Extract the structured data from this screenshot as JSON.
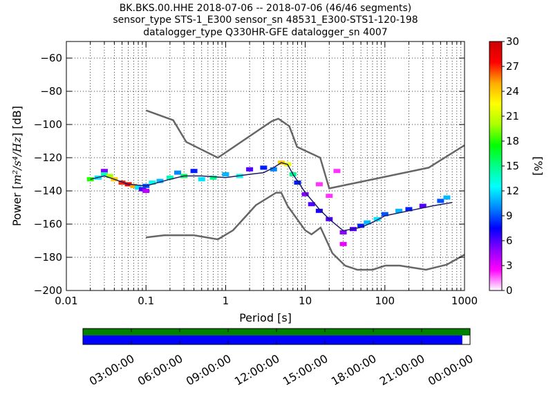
{
  "chart_data": {
    "type": "heatmap",
    "title_lines": [
      "BK.BKS.00.HHE   2018-07-06 -- 2018-07-06  (46/46 segments)",
      "sensor_type STS-1_E300 sensor_sn 48531_E300-STS1-120-198",
      "datalogger_type Q330HR-GFE datalogger_sn 4007"
    ],
    "xlabel": "Period [s]",
    "ylabel_main": "Power [",
    "ylabel_units": "m²/s⁴/Hz",
    "ylabel_end": "] [dB]",
    "xscale": "log",
    "xlim": [
      0.01,
      1000
    ],
    "ylim": [
      -200,
      -50
    ],
    "xticks": [
      {
        "value": 0.01,
        "label": "0.01"
      },
      {
        "value": 0.1,
        "label": "0.1"
      },
      {
        "value": 1,
        "label": "1"
      },
      {
        "value": 10,
        "label": "10"
      },
      {
        "value": 100,
        "label": "100"
      },
      {
        "value": 1000,
        "label": "1000"
      }
    ],
    "yticks": [
      {
        "value": -60,
        "label": "−60"
      },
      {
        "value": -80,
        "label": "−80"
      },
      {
        "value": -100,
        "label": "−100"
      },
      {
        "value": -120,
        "label": "−120"
      },
      {
        "value": -140,
        "label": "−140"
      },
      {
        "value": -160,
        "label": "−160"
      },
      {
        "value": -180,
        "label": "−180"
      },
      {
        "value": -200,
        "label": "−200"
      }
    ],
    "grid": "dotted",
    "colorbar": {
      "label": "[%]",
      "range": [
        0,
        30
      ],
      "ticks": [
        {
          "value": 0,
          "label": "0"
        },
        {
          "value": 3,
          "label": "3"
        },
        {
          "value": 6,
          "label": "6"
        },
        {
          "value": 9,
          "label": "9"
        },
        {
          "value": 12,
          "label": "12"
        },
        {
          "value": 15,
          "label": "15"
        },
        {
          "value": 18,
          "label": "18"
        },
        {
          "value": 21,
          "label": "21"
        },
        {
          "value": 24,
          "label": "24"
        },
        {
          "value": 27,
          "label": "27"
        },
        {
          "value": 30,
          "label": "30"
        }
      ],
      "colors": [
        "#ffffff",
        "#ff00ff",
        "#8800ff",
        "#0000ff",
        "#0088ff",
        "#00ffff",
        "#00ff88",
        "#00ff00",
        "#aaff00",
        "#ffff00",
        "#ffaa00",
        "#ff0000",
        "#cc0000"
      ]
    },
    "new_high_noise_model": {
      "x": [
        0.1,
        0.22,
        0.32,
        0.8,
        3.8,
        4.6,
        6.3,
        7.9,
        15.4,
        20,
        354.8,
        1000
      ],
      "y": [
        -91.5,
        -97.4,
        -110.5,
        -120,
        -98,
        -96.5,
        -101,
        -113.5,
        -120,
        -138.5,
        -126,
        -112.5
      ]
    },
    "new_low_noise_model": {
      "x": [
        0.1,
        0.17,
        0.4,
        0.8,
        1.24,
        2.4,
        4.3,
        5,
        6,
        10,
        12,
        15.6,
        21.9,
        31.6,
        45,
        70,
        101,
        154,
        328,
        600,
        1000
      ],
      "y": [
        -168,
        -166.7,
        -166.7,
        -169.2,
        -163.7,
        -148.6,
        -141.1,
        -141.1,
        -149,
        -163.8,
        -166.2,
        -162.1,
        -177.5,
        -185,
        -187.5,
        -187.5,
        -185,
        -185,
        -187.5,
        -184.4,
        -178.4
      ]
    },
    "mean_curve": {
      "x": [
        0.02,
        0.03,
        0.04,
        0.06,
        0.1,
        0.2,
        0.3,
        0.5,
        1,
        2,
        3,
        4,
        5,
        6,
        7,
        10,
        15,
        20,
        30,
        50,
        70,
        100,
        200,
        400,
        700
      ],
      "y": [
        -133,
        -131,
        -133,
        -136,
        -137,
        -133,
        -131,
        -131,
        -132,
        -130,
        -129,
        -126,
        -123,
        -124,
        -130,
        -141,
        -151,
        -157,
        -164,
        -162,
        -159,
        -155,
        -152,
        -149,
        -147
      ]
    },
    "psd_cells": [
      {
        "x": 0.02,
        "y": -133,
        "v": 18
      },
      {
        "x": 0.025,
        "y": -132,
        "v": 12
      },
      {
        "x": 0.03,
        "y": -128,
        "v": 5
      },
      {
        "x": 0.03,
        "y": -130,
        "v": 14
      },
      {
        "x": 0.035,
        "y": -131,
        "v": 20
      },
      {
        "x": 0.04,
        "y": -133,
        "v": 24
      },
      {
        "x": 0.05,
        "y": -135,
        "v": 27
      },
      {
        "x": 0.06,
        "y": -136,
        "v": 28
      },
      {
        "x": 0.07,
        "y": -137,
        "v": 25
      },
      {
        "x": 0.08,
        "y": -138,
        "v": 12
      },
      {
        "x": 0.09,
        "y": -139,
        "v": 6
      },
      {
        "x": 0.1,
        "y": -137,
        "v": 9
      },
      {
        "x": 0.1,
        "y": -140,
        "v": 4
      },
      {
        "x": 0.12,
        "y": -135,
        "v": 13
      },
      {
        "x": 0.15,
        "y": -134,
        "v": 11
      },
      {
        "x": 0.2,
        "y": -132,
        "v": 14
      },
      {
        "x": 0.25,
        "y": -129,
        "v": 10
      },
      {
        "x": 0.3,
        "y": -131,
        "v": 16
      },
      {
        "x": 0.4,
        "y": -128,
        "v": 8
      },
      {
        "x": 0.5,
        "y": -133,
        "v": 12
      },
      {
        "x": 0.7,
        "y": -132,
        "v": 15
      },
      {
        "x": 1,
        "y": -130,
        "v": 11
      },
      {
        "x": 1.5,
        "y": -131,
        "v": 13
      },
      {
        "x": 2,
        "y": -127,
        "v": 6
      },
      {
        "x": 3,
        "y": -126,
        "v": 8
      },
      {
        "x": 4,
        "y": -127,
        "v": 10
      },
      {
        "x": 5,
        "y": -123,
        "v": 24
      },
      {
        "x": 6,
        "y": -124,
        "v": 22
      },
      {
        "x": 7,
        "y": -130,
        "v": 15
      },
      {
        "x": 8,
        "y": -135,
        "v": 8
      },
      {
        "x": 10,
        "y": -142,
        "v": 5
      },
      {
        "x": 12,
        "y": -148,
        "v": 6
      },
      {
        "x": 15,
        "y": -152,
        "v": 7
      },
      {
        "x": 15,
        "y": -136,
        "v": 2
      },
      {
        "x": 20,
        "y": -157,
        "v": 6
      },
      {
        "x": 20,
        "y": -143,
        "v": 2
      },
      {
        "x": 25,
        "y": -128,
        "v": 2
      },
      {
        "x": 30,
        "y": -165,
        "v": 5
      },
      {
        "x": 30,
        "y": -172,
        "v": 3
      },
      {
        "x": 40,
        "y": -163,
        "v": 6
      },
      {
        "x": 50,
        "y": -161,
        "v": 8
      },
      {
        "x": 60,
        "y": -159,
        "v": 11
      },
      {
        "x": 80,
        "y": -157,
        "v": 12
      },
      {
        "x": 100,
        "y": -154,
        "v": 9
      },
      {
        "x": 150,
        "y": -152,
        "v": 11
      },
      {
        "x": 200,
        "y": -151,
        "v": 8
      },
      {
        "x": 300,
        "y": -149,
        "v": 6
      },
      {
        "x": 500,
        "y": -146,
        "v": 9
      },
      {
        "x": 600,
        "y": -144,
        "v": 11
      }
    ],
    "coverage": {
      "time_ticks": [
        "03:00:00",
        "06:00:00",
        "09:00:00",
        "12:00:00",
        "15:00:00",
        "18:00:00",
        "21:00:00",
        "00:00:00"
      ],
      "used_fraction": 0.98,
      "available_fraction": 1.0,
      "available_color": "#008000",
      "used_color": "#0000ff"
    },
    "colors": {
      "noise_model": "#666666",
      "mean": "#1a1a66",
      "grid": "#000000"
    }
  }
}
